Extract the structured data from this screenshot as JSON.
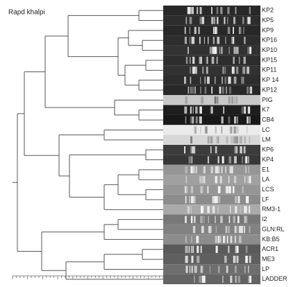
{
  "title": "Rapd khalpi",
  "leaves": [
    "KP2",
    "KP5",
    "KP9",
    "KP16",
    "KP10",
    "KP15",
    "KP11",
    "KP 14",
    "KP12",
    "PIG",
    "K7",
    "CB4",
    "LC",
    "LM",
    "KP6",
    "KP4",
    "E1",
    "LA",
    "LCS",
    "LF",
    "RM3-1",
    "I2",
    "GLN:RL",
    "KB:B5",
    "ACR1",
    "ME3",
    "LP",
    "LADDER"
  ]
}
